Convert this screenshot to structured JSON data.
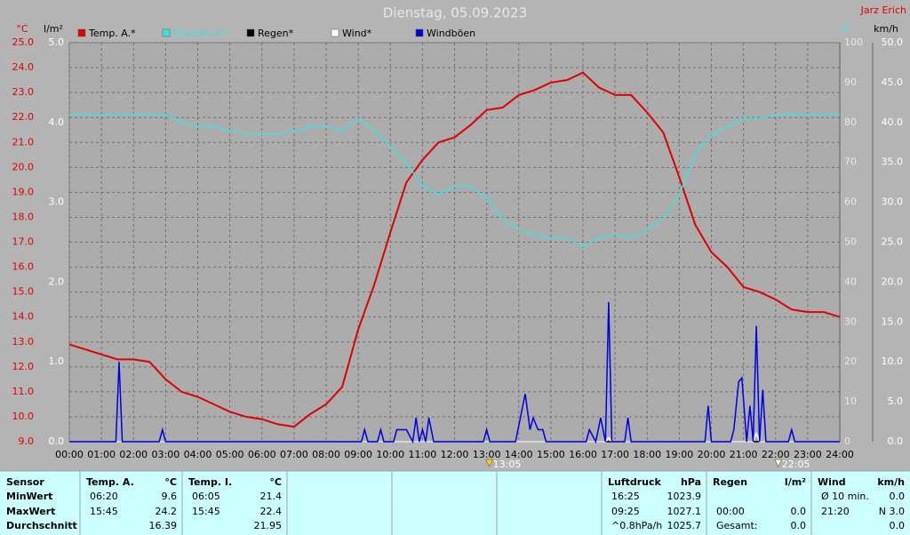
{
  "chart_data": {
    "type": "line",
    "title": "Dienstag, 05.09.2023",
    "author": "Jarz Erich",
    "y_unit": "°C",
    "y2_unit": "%",
    "y3_unit": "l/m²",
    "y4_unit": "km/h",
    "xlim": [
      0,
      24
    ],
    "xticks": [
      {
        "value": 0,
        "label": "00:00"
      },
      {
        "value": 1,
        "label": "01:00"
      },
      {
        "value": 2,
        "label": "02:00"
      },
      {
        "value": 3,
        "label": "03:00"
      },
      {
        "value": 4,
        "label": "04:00"
      },
      {
        "value": 5,
        "label": "05:00"
      },
      {
        "value": 6,
        "label": "06:00"
      },
      {
        "value": 7,
        "label": "07:00"
      },
      {
        "value": 8,
        "label": "08:00"
      },
      {
        "value": 9,
        "label": "09:00"
      },
      {
        "value": 10,
        "label": "10:00"
      },
      {
        "value": 11,
        "label": "11:00"
      },
      {
        "value": 12,
        "label": "12:00"
      },
      {
        "value": 13,
        "label": "13:00"
      },
      {
        "value": 14,
        "label": "14:00"
      },
      {
        "value": 15,
        "label": "15:00"
      },
      {
        "value": 16,
        "label": "16:00"
      },
      {
        "value": 17,
        "label": "17:00"
      },
      {
        "value": 18,
        "label": "18:00"
      },
      {
        "value": 19,
        "label": "19:00"
      },
      {
        "value": 20,
        "label": "20:00"
      },
      {
        "value": 21,
        "label": "21:00"
      },
      {
        "value": 22,
        "label": "22:00"
      },
      {
        "value": 23,
        "label": "23:00"
      },
      {
        "value": 24,
        "label": "24:00"
      }
    ],
    "ylim": [
      9,
      25
    ],
    "yticks": [
      {
        "value": 9,
        "label": "9.0"
      },
      {
        "value": 10,
        "label": "10.0"
      },
      {
        "value": 11,
        "label": "11.0"
      },
      {
        "value": 12,
        "label": "12.0"
      },
      {
        "value": 13,
        "label": "13.0"
      },
      {
        "value": 14,
        "label": "14.0"
      },
      {
        "value": 15,
        "label": "15.0"
      },
      {
        "value": 16,
        "label": "16.0"
      },
      {
        "value": 17,
        "label": "17.0"
      },
      {
        "value": 18,
        "label": "18.0"
      },
      {
        "value": 19,
        "label": "19.0"
      },
      {
        "value": 20,
        "label": "20.0"
      },
      {
        "value": 21,
        "label": "21.0"
      },
      {
        "value": 22,
        "label": "22.0"
      },
      {
        "value": 23,
        "label": "23.0"
      },
      {
        "value": 24,
        "label": "24.0"
      },
      {
        "value": 25,
        "label": "25.0"
      }
    ],
    "y2lim": [
      0,
      100
    ],
    "y2ticks": [
      0,
      10,
      20,
      30,
      40,
      50,
      60,
      70,
      80,
      90,
      100
    ],
    "y3lim": [
      0,
      5
    ],
    "y3ticks": [
      {
        "value": 0,
        "label": "0.0"
      },
      {
        "value": 1,
        "label": "1.0"
      },
      {
        "value": 2,
        "label": "2.0"
      },
      {
        "value": 3,
        "label": "3.0"
      },
      {
        "value": 4,
        "label": "4.0"
      },
      {
        "value": 5,
        "label": "5.0"
      }
    ],
    "y4lim": [
      0,
      50
    ],
    "y4ticks": [
      {
        "value": 0,
        "label": "0.0"
      },
      {
        "value": 5,
        "label": "5.0"
      },
      {
        "value": 10,
        "label": "10.0"
      },
      {
        "value": 15,
        "label": "15.0"
      },
      {
        "value": 20,
        "label": "20.0"
      },
      {
        "value": 25,
        "label": "25.0"
      },
      {
        "value": 30,
        "label": "30.0"
      },
      {
        "value": 35,
        "label": "35.0"
      },
      {
        "value": 40,
        "label": "40.0"
      },
      {
        "value": 45,
        "label": "45.0"
      },
      {
        "value": 50,
        "label": "50.0"
      }
    ],
    "grid": true,
    "x": [
      0,
      0.5,
      1,
      1.5,
      2,
      2.5,
      3,
      3.5,
      4,
      4.5,
      5,
      5.5,
      6,
      6.5,
      7,
      7.5,
      8,
      8.5,
      9,
      9.5,
      10,
      10.5,
      11,
      11.5,
      12,
      12.5,
      13,
      13.5,
      14,
      14.5,
      15,
      15.5,
      16,
      16.5,
      17,
      17.5,
      18,
      18.5,
      19,
      19.5,
      20,
      20.5,
      21,
      21.5,
      22,
      22.5,
      23,
      23.5,
      24
    ],
    "series": [
      {
        "name": "Temp. A.*",
        "color": "#e00000",
        "axis": "y",
        "values": [
          12.9,
          12.7,
          12.5,
          12.3,
          12.3,
          12.2,
          11.5,
          11.0,
          10.8,
          10.5,
          10.2,
          10.0,
          9.9,
          9.7,
          9.6,
          10.1,
          10.5,
          11.2,
          13.5,
          15.3,
          17.4,
          19.4,
          20.3,
          21.0,
          21.2,
          21.7,
          22.3,
          22.4,
          22.9,
          23.1,
          23.4,
          23.5,
          23.8,
          23.2,
          22.9,
          22.9,
          22.2,
          21.4,
          19.6,
          17.7,
          16.6,
          16.0,
          15.2,
          15.0,
          14.7,
          14.3,
          14.2,
          14.2,
          14.0
        ]
      },
      {
        "name": "Feuchte A.*",
        "color": "#40e0e0",
        "axis": "y2",
        "values": [
          82,
          82,
          82,
          82,
          82,
          82,
          82,
          80,
          79,
          79,
          78,
          77,
          77,
          77,
          78,
          79,
          79,
          78,
          81,
          78,
          74,
          70,
          64,
          62,
          64,
          64,
          61,
          56,
          53,
          52,
          51,
          51,
          49,
          51,
          52,
          51,
          53,
          56,
          62,
          72,
          77,
          79,
          81,
          81,
          82,
          82,
          82,
          82,
          82
        ]
      },
      {
        "name": "Regen*",
        "color": "#000000",
        "axis": "y3",
        "x": [
          0,
          24
        ],
        "values": [
          0,
          0
        ]
      },
      {
        "name": "Wind*",
        "color": "#ffffff",
        "axis": "y4",
        "x": [
          0,
          16.7,
          16.8,
          16.9,
          21.3,
          21.4,
          21.5,
          24
        ],
        "values": [
          0,
          0,
          0.5,
          0,
          0,
          1,
          0,
          0
        ]
      },
      {
        "name": "Windböen",
        "color": "#0000e0",
        "axis": "y4",
        "x": [
          0,
          1.45,
          1.55,
          1.65,
          2.8,
          2.9,
          3.0,
          9.1,
          9.2,
          9.3,
          9.6,
          9.7,
          9.8,
          10.1,
          10.2,
          10.5,
          10.7,
          10.8,
          10.9,
          11.0,
          11.1,
          11.2,
          11.35,
          12.9,
          13.0,
          13.1,
          13.9,
          14.0,
          14.2,
          14.35,
          14.45,
          14.6,
          14.75,
          14.85,
          16.1,
          16.2,
          16.4,
          16.55,
          16.7,
          16.8,
          16.9,
          17.3,
          17.4,
          17.5,
          19.8,
          19.9,
          20.0,
          20.6,
          20.7,
          20.85,
          20.95,
          21.1,
          21.2,
          21.3,
          21.4,
          21.5,
          21.6,
          21.7,
          22.4,
          22.5,
          22.6,
          24
        ],
        "values": [
          0,
          0,
          10,
          0,
          0,
          1.5,
          0,
          0,
          1.5,
          0,
          0,
          1.5,
          0,
          0,
          1.5,
          1.5,
          0,
          3,
          0,
          1.5,
          0,
          3,
          0,
          0,
          1.5,
          0,
          0,
          2,
          6,
          1.5,
          3,
          1.5,
          1.5,
          0,
          0,
          1.5,
          0,
          3,
          0,
          17.5,
          0,
          0,
          3,
          0,
          0,
          4.5,
          0,
          0,
          1.5,
          7.5,
          8,
          0,
          4.5,
          0,
          14.5,
          0,
          6.5,
          0,
          0,
          1.5,
          0,
          0
        ]
      }
    ],
    "annotations": [
      {
        "label": "13:05"
      },
      {
        "label": "22:05"
      }
    ]
  },
  "table": {
    "columns": [
      {
        "header": [
          "Sensor"
        ],
        "rows": [
          [
            "MinWert"
          ],
          [
            "MaxWert"
          ],
          [
            "Durchschnitt"
          ]
        ]
      },
      {
        "header": [
          "Temp. A.",
          "°C"
        ],
        "rows": [
          [
            "06:20",
            "9.6"
          ],
          [
            "15:45",
            "24.2"
          ],
          [
            null,
            "16.39"
          ]
        ]
      },
      {
        "header": [
          "Temp. I.",
          "°C"
        ],
        "rows": [
          [
            "06:05",
            "21.4"
          ],
          [
            "15:45",
            "22.4"
          ],
          [
            null,
            "21.95"
          ]
        ]
      },
      {
        "header": [
          "Luftdruck",
          "hPa"
        ],
        "rows": [
          [
            "16:25",
            "1023.9"
          ],
          [
            "09:25",
            "1027.1"
          ],
          [
            "^0.8hPa/h",
            "1025.7"
          ]
        ]
      },
      {
        "header": [
          "Regen",
          "l/m²"
        ],
        "rows": [
          [
            null,
            null
          ],
          [
            "00:00",
            "0.0"
          ],
          [
            "Gesamt:",
            "0.0"
          ]
        ]
      },
      {
        "header": [
          "Wind",
          "km/h"
        ],
        "rows": [
          [
            "Ø 10 min.",
            "0.0"
          ],
          [
            "21:20",
            "N 3.0"
          ],
          [
            null,
            "0.0"
          ]
        ]
      }
    ]
  }
}
